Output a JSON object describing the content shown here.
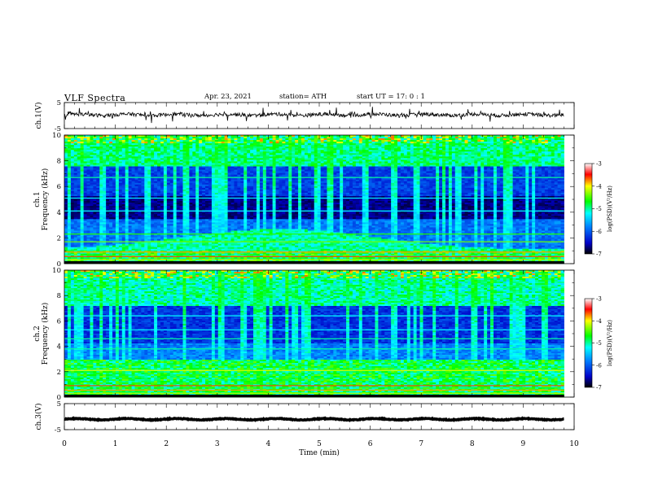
{
  "header": {
    "title": "VLF  Spectra",
    "date": "Apr. 23, 2021",
    "station": "station= ATH",
    "start": "start  UT  =   17: 0   : 1"
  },
  "chart_data": [
    {
      "type": "line",
      "name": "ch1-waveform",
      "ylabel": "ch.1(V)",
      "ylim": [
        -5,
        5
      ],
      "yticks": [
        "5",
        "-5"
      ],
      "x_range_min": [
        0,
        9.8
      ],
      "baseline": 0.3
    },
    {
      "type": "heatmap",
      "name": "ch1-spectrogram",
      "ylabel_top": "ch.1",
      "ylabel": "Frequency (kHz)",
      "ylim": [
        0,
        10
      ],
      "yticks": [
        "0",
        "2",
        "4",
        "6",
        "8",
        "10"
      ],
      "x_range_min": [
        0,
        9.8
      ],
      "colorbar": {
        "label": "log(PSD)(V²/Hz)",
        "range": [
          -7,
          -3
        ],
        "ticks": [
          "-3",
          "-4",
          "-5",
          "-6",
          "-7"
        ]
      }
    },
    {
      "type": "heatmap",
      "name": "ch2-spectrogram",
      "ylabel_top": "ch.2",
      "ylabel": "Frequency (kHz)",
      "ylim": [
        0,
        10
      ],
      "yticks": [
        "0",
        "2",
        "4",
        "6",
        "8",
        "10"
      ],
      "x_range_min": [
        0,
        9.8
      ],
      "colorbar": {
        "label": "log(PSD)(V²/Hz)",
        "range": [
          -7,
          -3
        ],
        "ticks": [
          "-3",
          "-4",
          "-5",
          "-6",
          "-7"
        ]
      }
    },
    {
      "type": "line",
      "name": "ch3-waveform",
      "ylabel": "ch.3(V)",
      "ylim": [
        -5,
        5
      ],
      "yticks": [
        "5",
        "-5"
      ],
      "x_range_min": [
        0,
        9.8
      ],
      "baseline": -1
    }
  ],
  "xaxis": {
    "label": "Time  (min)",
    "range": [
      0,
      10
    ],
    "ticks": [
      "0",
      "1",
      "2",
      "3",
      "4",
      "5",
      "6",
      "7",
      "8",
      "9",
      "10"
    ]
  }
}
